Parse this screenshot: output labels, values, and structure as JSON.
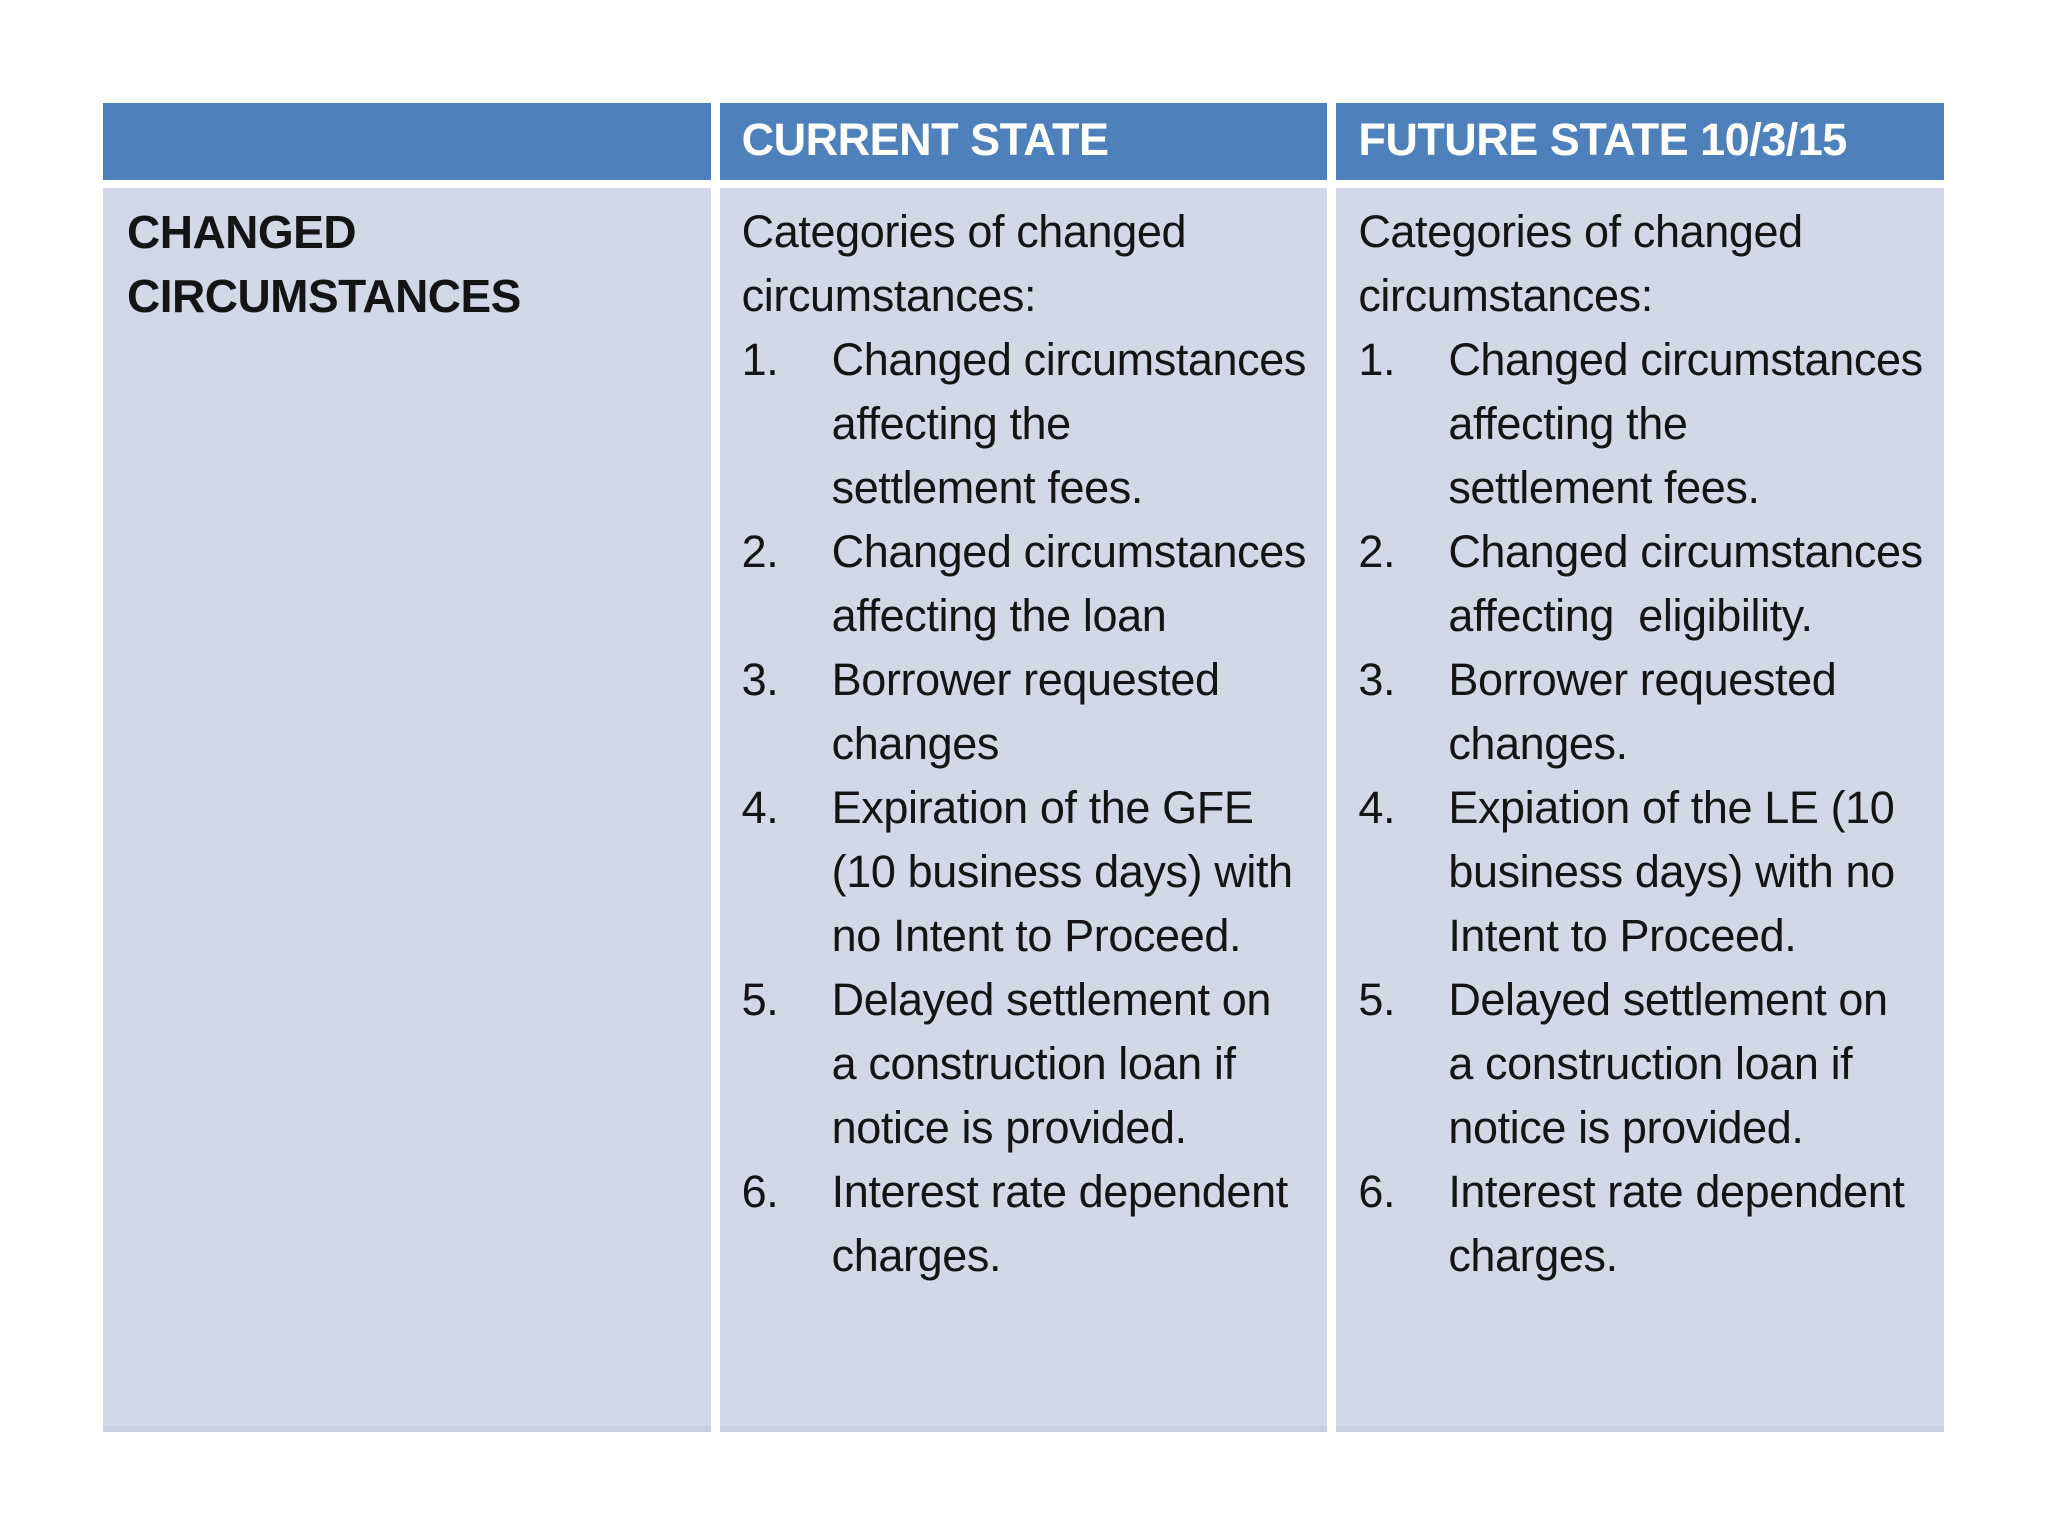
{
  "colors": {
    "header_bg": "#4e80bc",
    "header_text": "#ffffff",
    "body_bg": "#d2d8e6",
    "body_text": "#141414",
    "divider": "#ffffff"
  },
  "table": {
    "header": {
      "blank": "",
      "current": "CURRENT STATE",
      "future": "FUTURE STATE 10/3/15"
    },
    "row_label": {
      "lines": [
        "CHANGED",
        "CIRCUMSTANCES"
      ]
    },
    "current_state": {
      "intro_lines": [
        "Categories of changed",
        "circumstances:"
      ],
      "items": [
        {
          "number": "1.",
          "lines": [
            "Changed circumstances",
            "affecting the",
            "settlement fees."
          ]
        },
        {
          "number": "2.",
          "lines": [
            "Changed circumstances",
            "affecting the loan"
          ]
        },
        {
          "number": "3.",
          "lines": [
            "Borrower requested",
            "changes"
          ]
        },
        {
          "number": "4.",
          "lines": [
            "Expiration of the GFE",
            "(10 business days) with",
            "no Intent to Proceed."
          ]
        },
        {
          "number": "5.",
          "lines": [
            "Delayed settlement on",
            "a construction loan if",
            "notice is provided."
          ]
        },
        {
          "number": "6.",
          "lines": [
            "Interest rate dependent",
            "charges."
          ]
        }
      ]
    },
    "future_state": {
      "intro_lines": [
        "Categories of changed",
        "circumstances:"
      ],
      "items": [
        {
          "number": "1.",
          "lines": [
            "Changed circumstances",
            "affecting the",
            "settlement fees."
          ]
        },
        {
          "number": "2.",
          "lines": [
            "Changed circumstances",
            "affecting  eligibility."
          ]
        },
        {
          "number": "3.",
          "lines": [
            "Borrower requested",
            "changes."
          ]
        },
        {
          "number": "4.",
          "lines": [
            "Expiation of the LE (10",
            "business days) with no",
            "Intent to Proceed."
          ]
        },
        {
          "number": "5.",
          "lines": [
            "Delayed settlement on",
            "a construction loan if",
            "notice is provided."
          ]
        },
        {
          "number": "6.",
          "lines": [
            "Interest rate dependent",
            "charges."
          ]
        }
      ]
    }
  }
}
